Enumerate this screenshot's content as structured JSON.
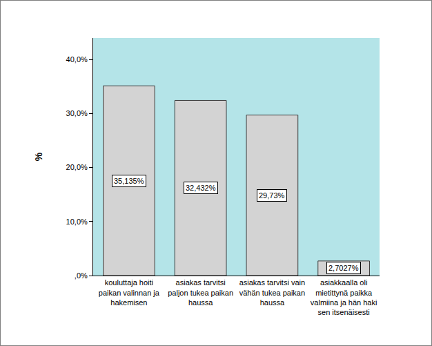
{
  "chart_data": {
    "type": "bar",
    "y_label": "%",
    "categories": [
      "kouluttaja hoiti paikan valinnan ja hakemisen",
      "asiakas tarvitsi paljon tukea paikan haussa",
      "asiakas tarvitsi vain vähän tukea paikan haussa",
      "asiakkaalla oli mietittynä paikka valmiina ja hän haki sen itsenäisesti"
    ],
    "values": [
      35.135,
      32.432,
      29.73,
      2.7027
    ],
    "value_labels": [
      "35,135%",
      "32,432%",
      "29,73%",
      "2,7027%"
    ],
    "data_labels": true,
    "color": "#d3d3d3",
    "ylim": [
      0,
      44
    ],
    "yticks": [
      {
        "value": 0,
        "label": ",0%"
      },
      {
        "value": 10,
        "label": "10,0%"
      },
      {
        "value": 20,
        "label": "20,0%"
      },
      {
        "value": 30,
        "label": "30,0%"
      },
      {
        "value": 40,
        "label": "40,0%"
      }
    ],
    "grid": false
  }
}
